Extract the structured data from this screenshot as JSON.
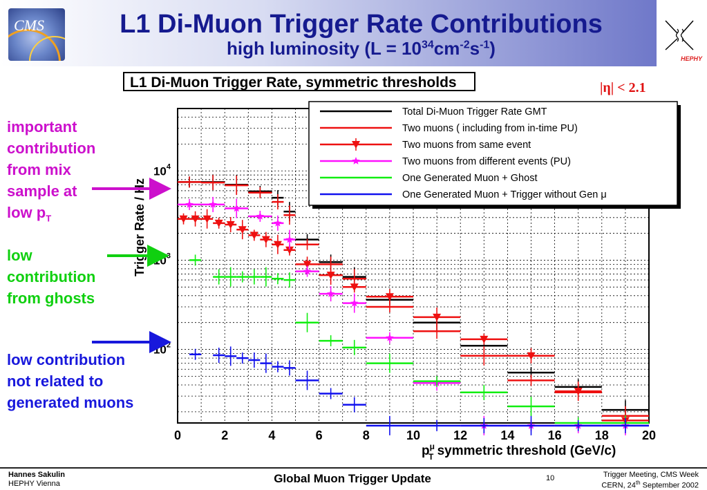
{
  "header": {
    "title": "L1 Di-Muon Trigger Rate Contributions",
    "subtitle_prefix": "high luminosity (L = 10",
    "subtitle_exp1": "34",
    "subtitle_mid": "cm",
    "subtitle_exp2": "-2",
    "subtitle_s": "s",
    "subtitle_exp3": "-1",
    "subtitle_suffix": ")",
    "logo_left": "CMS",
    "logo_right": "HEPHY"
  },
  "annotations": {
    "mix_line1": "important",
    "mix_line2": "contribution",
    "mix_line3": "from mix",
    "mix_line4": "sample at",
    "mix_line5": "low p",
    "mix_sub": "T",
    "ghost_line1": "low",
    "ghost_line2": "contribution",
    "ghost_line3": "from ghosts",
    "gen_line1": "low contribution",
    "gen_line2": "not related to",
    "gen_line3": "generated muons",
    "eta_cut": "|η| < 2.1",
    "colors": {
      "mix": "#cc10cc",
      "ghost": "#10d010",
      "gen": "#1818dc"
    }
  },
  "chart_data": {
    "type": "line",
    "title": "L1 Di-Muon Trigger Rate, symmetric thresholds",
    "xlabel": "p",
    "xlabel_sup": "μ",
    "xlabel_sub": "T",
    "xlabel_rest": " symmetric threshold (GeV/c)",
    "ylabel": "Trigger Rate / Hz",
    "xlim": [
      0,
      20
    ],
    "ylim_log": [
      15,
      50000
    ],
    "log_y": true,
    "x_ticks": [
      "0",
      "2",
      "4",
      "6",
      "8",
      "10",
      "12",
      "14",
      "16",
      "18",
      "20"
    ],
    "y_ticks": [
      {
        "base": "10",
        "exp": "2",
        "value": 100
      },
      {
        "base": "10",
        "exp": "3",
        "value": 1000
      },
      {
        "base": "10",
        "exp": "4",
        "value": 10000
      }
    ],
    "grid": true,
    "legend_position": "top-right",
    "series": [
      {
        "name": "Total Di-Muon Trigger Rate GMT",
        "color": "#000000",
        "marker": "none",
        "points": [
          [
            0.5,
            7500
          ],
          [
            1.5,
            7500
          ],
          [
            2.5,
            7000
          ],
          [
            3.5,
            5900
          ],
          [
            4.25,
            5000
          ],
          [
            4.75,
            3500
          ],
          [
            5.5,
            1700
          ],
          [
            6.5,
            950
          ],
          [
            7.5,
            650
          ],
          [
            9,
            360
          ],
          [
            11,
            200
          ],
          [
            13,
            110
          ],
          [
            15,
            55
          ],
          [
            17,
            38
          ],
          [
            19,
            21
          ]
        ]
      },
      {
        "name": "Two muons ( including from in-time PU)",
        "color": "#ee1010",
        "marker": "none",
        "points": [
          [
            0.5,
            7500
          ],
          [
            1.5,
            7400
          ],
          [
            2.5,
            6900
          ],
          [
            3.5,
            5700
          ],
          [
            4.25,
            4500
          ],
          [
            4.75,
            3200
          ],
          [
            5.5,
            1500
          ],
          [
            6.5,
            900
          ],
          [
            7.5,
            620
          ],
          [
            9,
            300
          ],
          [
            11,
            160
          ],
          [
            13,
            85
          ],
          [
            15,
            45
          ],
          [
            17,
            33
          ],
          [
            19,
            18
          ]
        ]
      },
      {
        "name": "Two muons from same event",
        "color": "#ee1010",
        "marker": "triangle",
        "points": [
          [
            0.25,
            2900
          ],
          [
            0.75,
            2900
          ],
          [
            1.25,
            2900
          ],
          [
            1.75,
            2600
          ],
          [
            2.25,
            2500
          ],
          [
            2.75,
            2200
          ],
          [
            3.25,
            1900
          ],
          [
            3.75,
            1700
          ],
          [
            4.25,
            1500
          ],
          [
            4.75,
            1300
          ],
          [
            5.5,
            900
          ],
          [
            6.5,
            680
          ],
          [
            7.5,
            500
          ],
          [
            9,
            390
          ],
          [
            11,
            230
          ],
          [
            13,
            130
          ],
          [
            15,
            85
          ],
          [
            17,
            34
          ],
          [
            19,
            16
          ]
        ]
      },
      {
        "name": "Two muons from different events (PU)",
        "color": "#ff10ff",
        "marker": "star",
        "points": [
          [
            0.5,
            4200
          ],
          [
            1.5,
            4200
          ],
          [
            2.5,
            3800
          ],
          [
            3.5,
            3100
          ],
          [
            4.25,
            2600
          ],
          [
            4.75,
            1700
          ],
          [
            5.5,
            750
          ],
          [
            6.5,
            420
          ],
          [
            7.5,
            330
          ],
          [
            9,
            135
          ],
          [
            11,
            42
          ],
          [
            13,
            14
          ],
          [
            15,
            14
          ],
          [
            17,
            14
          ],
          [
            19,
            14
          ]
        ]
      },
      {
        "name": "One Generated Muon + Ghost",
        "color": "#10ee10",
        "marker": "none",
        "points": [
          [
            0.75,
            1000
          ],
          [
            1.75,
            650
          ],
          [
            2.25,
            650
          ],
          [
            2.75,
            650
          ],
          [
            3.25,
            650
          ],
          [
            3.75,
            650
          ],
          [
            4.25,
            620
          ],
          [
            4.75,
            600
          ],
          [
            5.5,
            200
          ],
          [
            6.5,
            125
          ],
          [
            7.5,
            105
          ],
          [
            9,
            70
          ],
          [
            11,
            44
          ],
          [
            13,
            33
          ],
          [
            15,
            23
          ],
          [
            17,
            15
          ],
          [
            19,
            15
          ]
        ]
      },
      {
        "name": "One Generated Muon + Trigger without Gen  μ",
        "color": "#1010ee",
        "marker": "none",
        "points": [
          [
            0.75,
            88
          ],
          [
            1.75,
            86
          ],
          [
            2.25,
            84
          ],
          [
            2.75,
            80
          ],
          [
            3.25,
            76
          ],
          [
            3.75,
            70
          ],
          [
            4.25,
            64
          ],
          [
            4.75,
            62
          ],
          [
            5.5,
            45
          ],
          [
            6.5,
            32
          ],
          [
            7.5,
            24
          ],
          [
            9,
            14
          ],
          [
            11,
            14
          ],
          [
            13,
            14
          ],
          [
            15,
            14
          ],
          [
            17,
            14
          ],
          [
            19,
            14
          ]
        ]
      }
    ]
  },
  "footer": {
    "author": "Hannes Sakulin",
    "affiliation": "HEPHY Vienna",
    "center": "Global Muon Trigger Update",
    "page": "10",
    "meeting": "Trigger Meeting, CMS Week",
    "date_prefix": "CERN, 24",
    "date_sup": "th",
    "date_suffix": " September 2002"
  }
}
